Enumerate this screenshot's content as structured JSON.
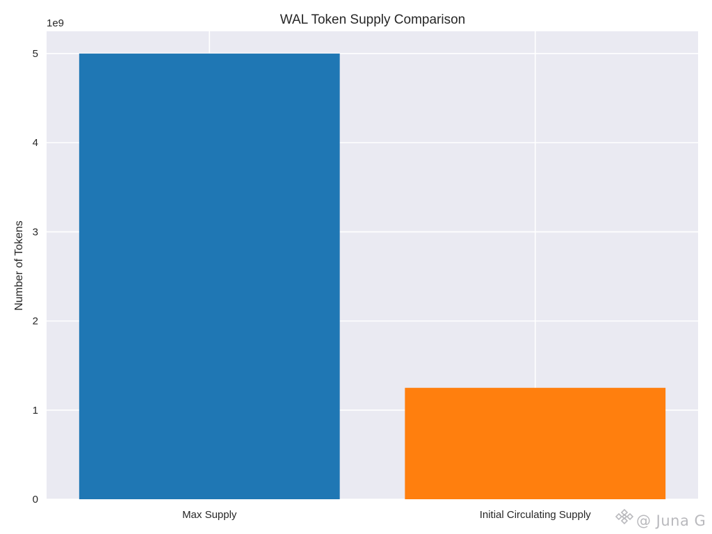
{
  "chart_data": {
    "type": "bar",
    "title": "WAL Token Supply Comparison",
    "xlabel": "",
    "ylabel": "Number of Tokens",
    "offset_text": "1e9",
    "categories": [
      "Max Supply",
      "Initial Circulating Supply"
    ],
    "values": [
      5000000000,
      1250000000
    ],
    "bar_colors": [
      "#1f77b4",
      "#ff7f0e"
    ],
    "ylim": [
      0,
      5250000000
    ],
    "yticks": [
      0,
      1000000000,
      2000000000,
      3000000000,
      4000000000,
      5000000000
    ],
    "ytick_labels": [
      "0",
      "1",
      "2",
      "3",
      "4",
      "5"
    ],
    "grid": true,
    "style": "seaborn-darkgrid"
  },
  "watermark": {
    "text": "@ Juna G",
    "icon": "binance-logo-icon"
  }
}
